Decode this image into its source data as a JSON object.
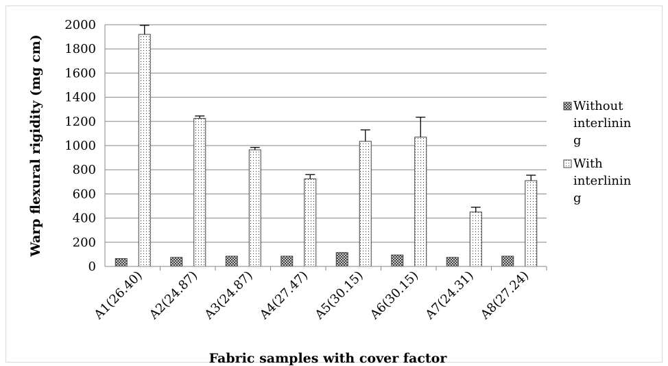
{
  "chart_data": {
    "type": "bar",
    "xlabel": "Fabric samples with cover factor",
    "ylabel": "Warp  flexural rigidity  (mg cm)",
    "ylim": [
      0,
      2000
    ],
    "yticks": [
      0,
      200,
      400,
      600,
      800,
      1000,
      1200,
      1400,
      1600,
      1800,
      2000
    ],
    "grid": true,
    "legend_position": "right",
    "categories": [
      "A1(26.40)",
      "A2(24.87)",
      "A3(24.87)",
      "A4(27.47)",
      "A5(30.15)",
      "A6(30.15)",
      "A7(24.31)",
      "A8(27.24)"
    ],
    "series": [
      {
        "name": "Without interlining",
        "legend_lines": [
          "Without",
          "interlinin",
          "g"
        ],
        "pattern": "crosshatch",
        "values": [
          65,
          75,
          85,
          85,
          115,
          95,
          75,
          85
        ],
        "errors": [
          0,
          0,
          0,
          0,
          0,
          0,
          0,
          0
        ]
      },
      {
        "name": "With interlining",
        "legend_lines": [
          "With",
          "interlinin",
          "g"
        ],
        "pattern": "dots",
        "values": [
          1920,
          1225,
          965,
          725,
          1035,
          1070,
          450,
          710
        ],
        "errors": [
          75,
          20,
          20,
          35,
          95,
          165,
          40,
          45
        ]
      }
    ]
  }
}
